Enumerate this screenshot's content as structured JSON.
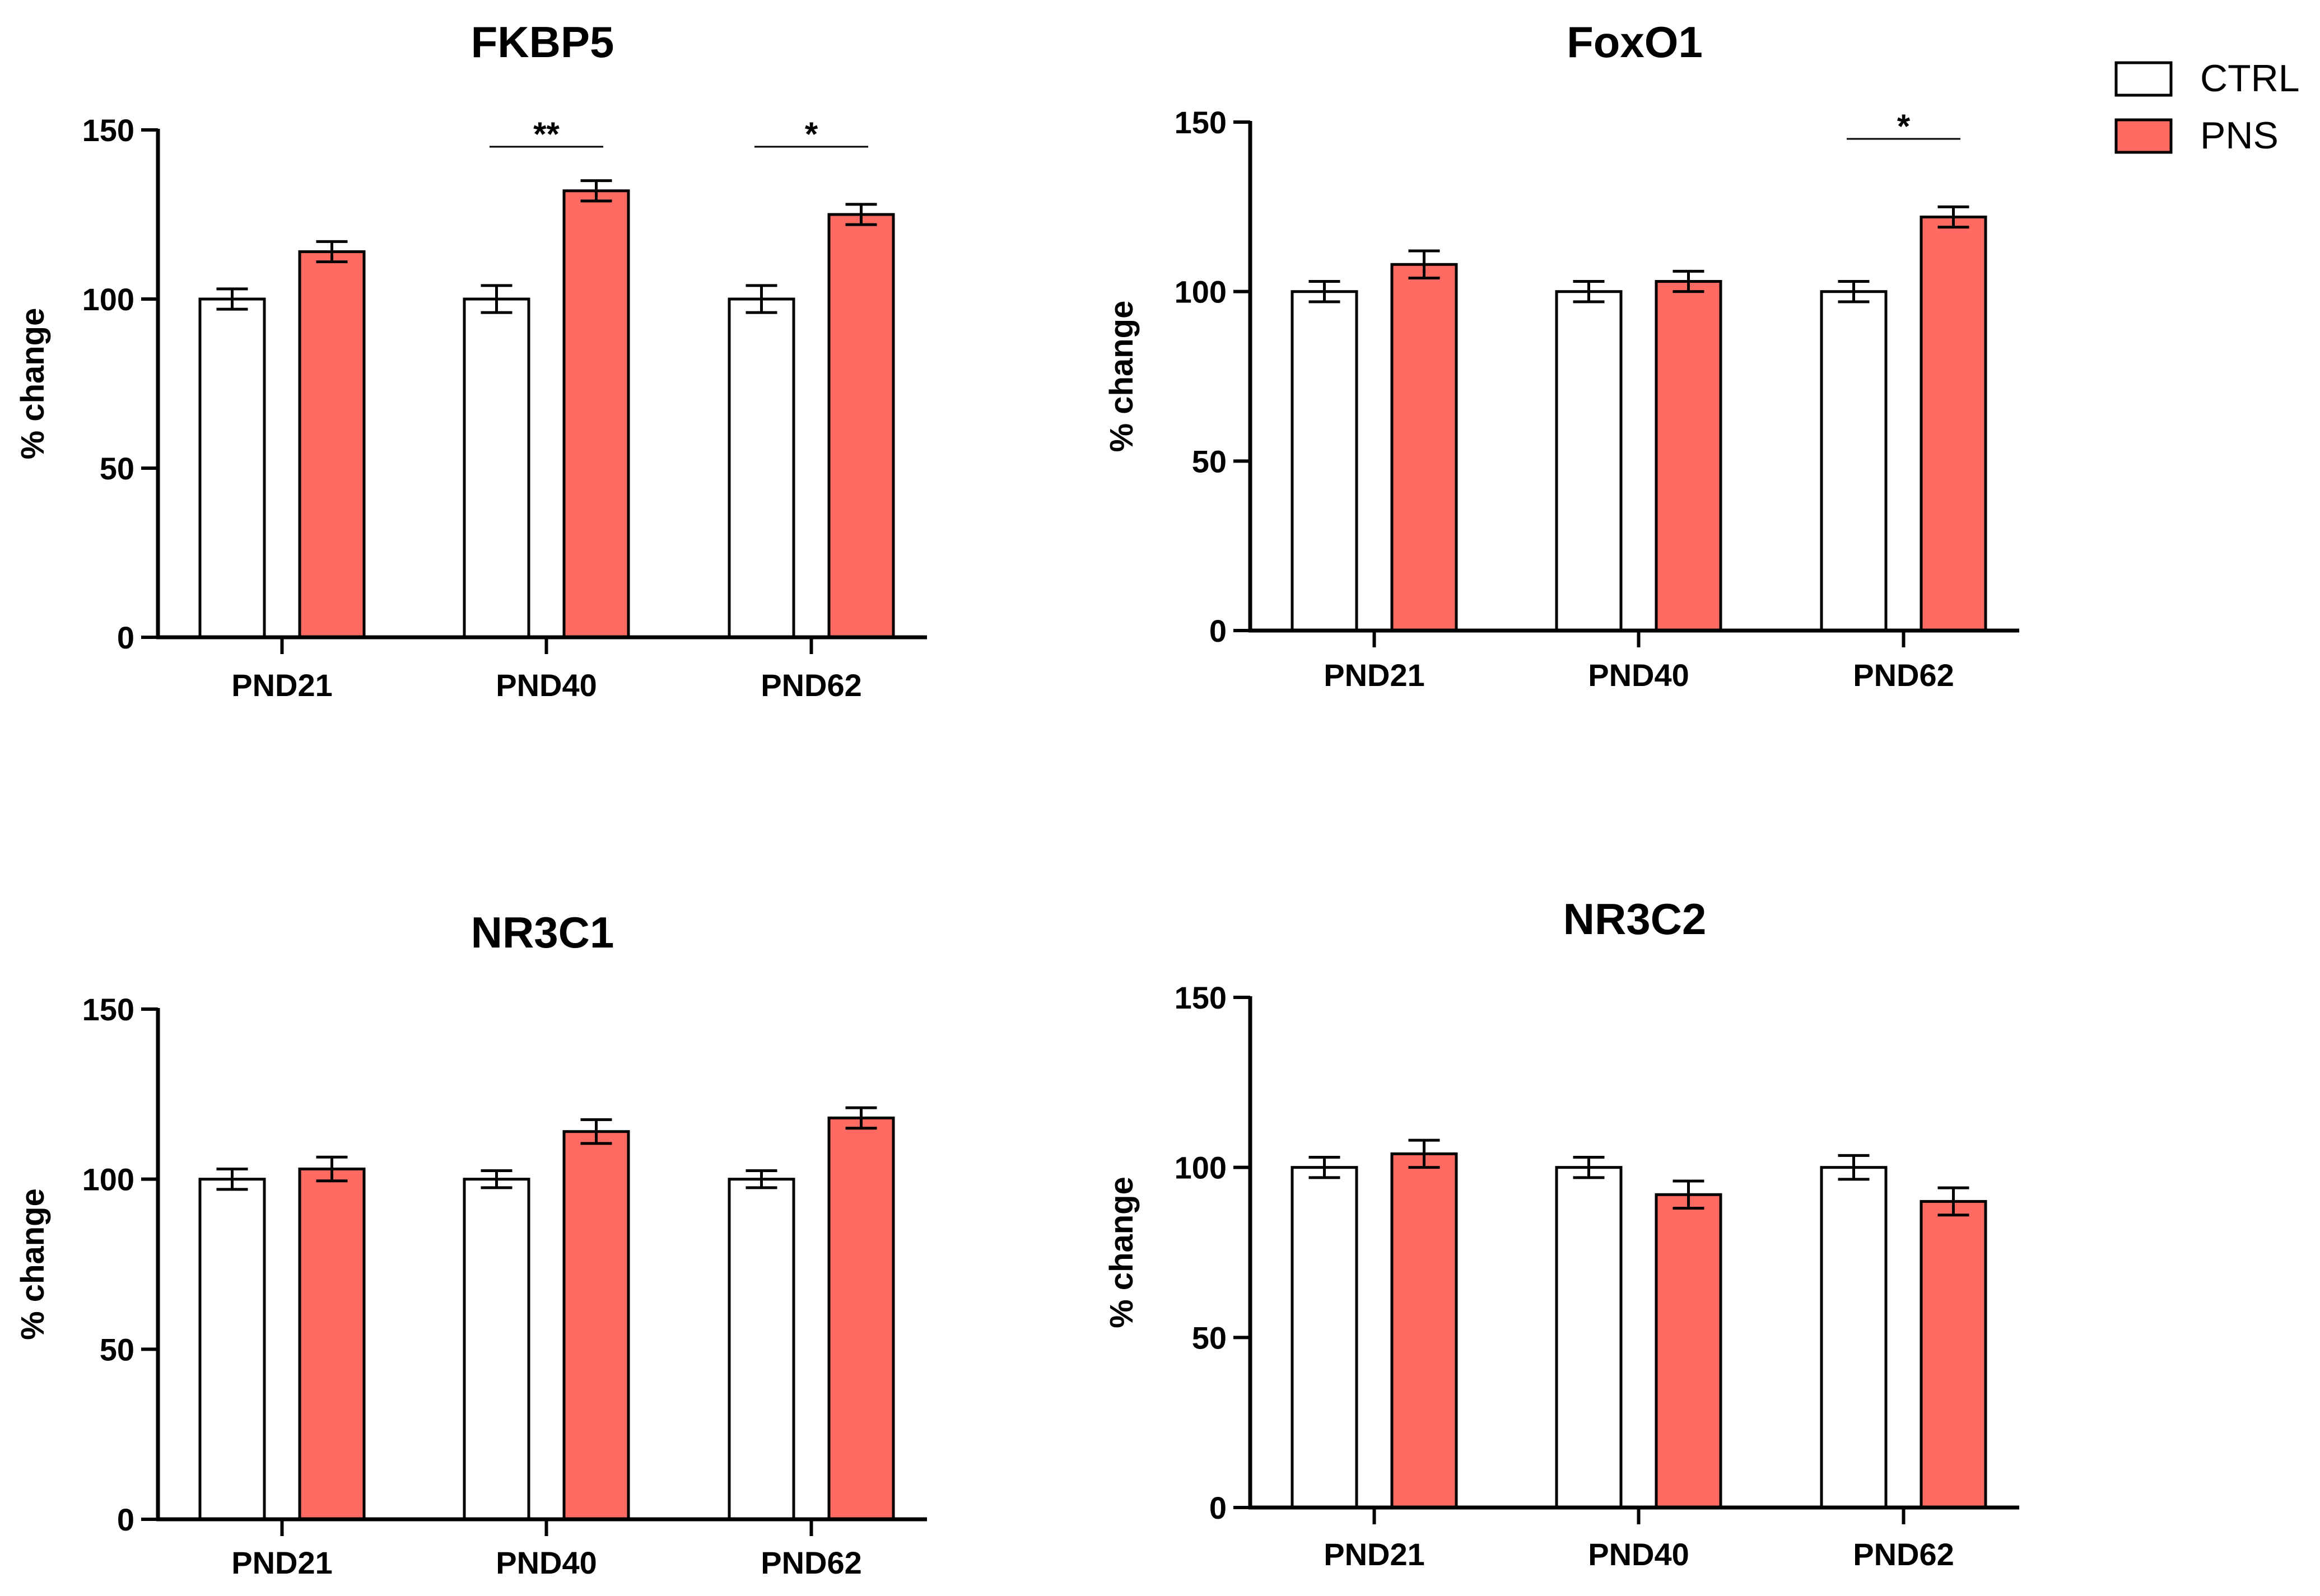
{
  "chart_data": [
    {
      "type": "bar",
      "title": "FKBP5",
      "xlabel": "",
      "ylabel": "% change",
      "ylim": [
        0,
        150
      ],
      "yticks": [
        0,
        50,
        100,
        150
      ],
      "categories": [
        "PND21",
        "PND40",
        "PND62"
      ],
      "series": [
        {
          "name": "CTRL",
          "values": [
            100,
            100,
            100
          ],
          "errors": [
            3,
            4,
            4
          ]
        },
        {
          "name": "PNS",
          "values": [
            114,
            132,
            125
          ],
          "errors": [
            3,
            3,
            3
          ]
        }
      ],
      "annotations": [
        {
          "category": "PND40",
          "label": "**"
        },
        {
          "category": "PND62",
          "label": "*"
        }
      ]
    },
    {
      "type": "bar",
      "title": "FoxO1",
      "xlabel": "",
      "ylabel": "% change",
      "ylim": [
        0,
        150
      ],
      "yticks": [
        0,
        50,
        100,
        150
      ],
      "categories": [
        "PND21",
        "PND40",
        "PND62"
      ],
      "series": [
        {
          "name": "CTRL",
          "values": [
            100,
            100,
            100
          ],
          "errors": [
            3,
            3,
            3
          ]
        },
        {
          "name": "PNS",
          "values": [
            108,
            103,
            122
          ],
          "errors": [
            4,
            3,
            3
          ]
        }
      ],
      "annotations": [
        {
          "category": "PND62",
          "label": "*"
        }
      ]
    },
    {
      "type": "bar",
      "title": "NR3C1",
      "xlabel": "",
      "ylabel": "% change",
      "ylim": [
        0,
        150
      ],
      "yticks": [
        0,
        50,
        100,
        150
      ],
      "categories": [
        "PND21",
        "PND40",
        "PND62"
      ],
      "series": [
        {
          "name": "CTRL",
          "values": [
            100,
            100,
            100
          ],
          "errors": [
            3,
            2.5,
            2.5
          ]
        },
        {
          "name": "PNS",
          "values": [
            103,
            114,
            118
          ],
          "errors": [
            3.5,
            3.5,
            3
          ]
        }
      ],
      "annotations": []
    },
    {
      "type": "bar",
      "title": "NR3C2",
      "xlabel": "",
      "ylabel": "% change",
      "ylim": [
        0,
        150
      ],
      "yticks": [
        0,
        50,
        100,
        150
      ],
      "categories": [
        "PND21",
        "PND40",
        "PND62"
      ],
      "series": [
        {
          "name": "CTRL",
          "values": [
            100,
            100,
            100
          ],
          "errors": [
            3,
            3,
            3.5
          ]
        },
        {
          "name": "PNS",
          "values": [
            104,
            92,
            90
          ],
          "errors": [
            4,
            4,
            4
          ]
        }
      ],
      "annotations": []
    }
  ],
  "legend": [
    {
      "name": "CTRL",
      "color": "#ffffff"
    },
    {
      "name": "PNS",
      "color": "#ff6b63"
    }
  ],
  "colors": {
    "ctrl_fill": "#ffffff",
    "pns_fill": "#ff6b63",
    "stroke": "#000000"
  }
}
